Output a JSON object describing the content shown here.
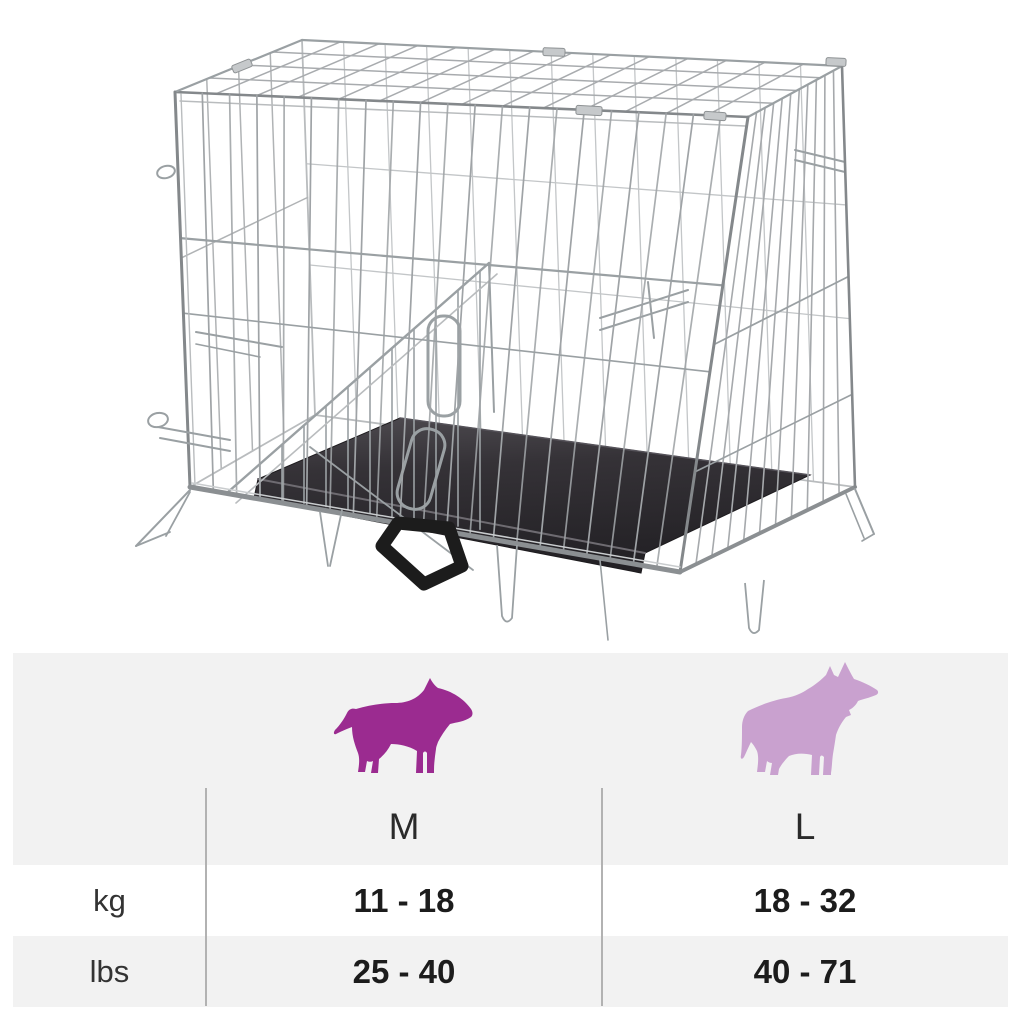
{
  "page": {
    "background": "#ffffff"
  },
  "illustration": {
    "name": "wire-dog-crate-photo",
    "wire_color": "#9aa0a3",
    "tray_color": "#2f2d31",
    "handle_color": "#1c1c1c"
  },
  "chart_data": {
    "type": "table",
    "columns": [
      "M",
      "L"
    ],
    "row_labels": [
      "kg",
      "lbs"
    ],
    "rows": [
      [
        "11 - 18",
        "18 - 32"
      ],
      [
        "25 - 40",
        "40 - 71"
      ]
    ],
    "legend": [
      {
        "column": "M",
        "icon": "medium-dog-silhouette",
        "color": "#9b2b90"
      },
      {
        "column": "L",
        "icon": "large-dog-silhouette",
        "color": "#c9a1cf"
      }
    ],
    "panel_background": "#f2f2f2",
    "highlight_row_background": "#ffffff",
    "divider_color": "#b2b2b2"
  }
}
